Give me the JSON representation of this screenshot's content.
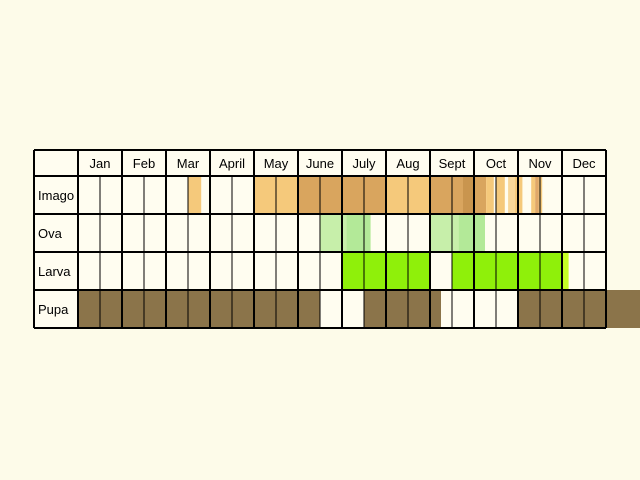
{
  "chart_data": {
    "type": "table",
    "months": [
      "Jan",
      "Feb",
      "Mar",
      "April",
      "May",
      "June",
      "July",
      "Aug",
      "Sept",
      "Oct",
      "Nov",
      "Dec"
    ],
    "periods_per_month": 2,
    "stages": [
      {
        "name": "Imago",
        "fills": [
          {
            "start": 5.0,
            "end": 5.6,
            "color": "#f5c97b"
          },
          {
            "start": 8.0,
            "end": 10.0,
            "color": "#f5c97b"
          },
          {
            "start": 10.0,
            "end": 14.0,
            "color": "#d9a55e"
          },
          {
            "start": 14.0,
            "end": 16.0,
            "color": "#f5c97b"
          },
          {
            "start": 16.0,
            "end": 17.5,
            "color": "#d9a55e"
          },
          {
            "start": 17.5,
            "end": 18.0,
            "color": "#c9954e"
          },
          {
            "start": 18.0,
            "end": 18.55,
            "color": "#d9a55e"
          },
          {
            "start": 18.55,
            "end": 18.9,
            "color": "#f5c97b"
          },
          {
            "start": 19.0,
            "end": 19.4,
            "color": "#f5c97b"
          },
          {
            "start": 19.55,
            "end": 19.85,
            "color": "#f8d79a"
          },
          {
            "start": 19.85,
            "end": 20.2,
            "color": "#f5c97b"
          },
          {
            "start": 20.6,
            "end": 20.78,
            "color": "#f5c97b"
          },
          {
            "start": 20.78,
            "end": 20.95,
            "color": "#e0a868"
          },
          {
            "start": 20.95,
            "end": 21.1,
            "color": "#f5c97b"
          }
        ]
      },
      {
        "name": "Ova",
        "fills": [
          {
            "start": 11.0,
            "end": 12.2,
            "color": "#c7efaa"
          },
          {
            "start": 12.2,
            "end": 13.3,
            "color": "#b3e998"
          },
          {
            "start": 16.0,
            "end": 17.3,
            "color": "#c7efaa"
          },
          {
            "start": 17.3,
            "end": 18.5,
            "color": "#b3e998"
          }
        ]
      },
      {
        "name": "Larva",
        "fills": [
          {
            "start": 12.0,
            "end": 16.0,
            "color": "#8ff00a"
          },
          {
            "start": 17.0,
            "end": 22.0,
            "color": "#8ff00a"
          },
          {
            "start": 22.0,
            "end": 22.3,
            "color": "#c4ff26"
          }
        ]
      },
      {
        "name": "Pupa",
        "fills": [
          {
            "start": 0.0,
            "end": 11.0,
            "color": "#8b744a"
          },
          {
            "start": 13.0,
            "end": 16.5,
            "color": "#8b744a"
          },
          {
            "start": 20.0,
            "end": 26.0,
            "color": "#8b744a"
          }
        ]
      }
    ]
  }
}
